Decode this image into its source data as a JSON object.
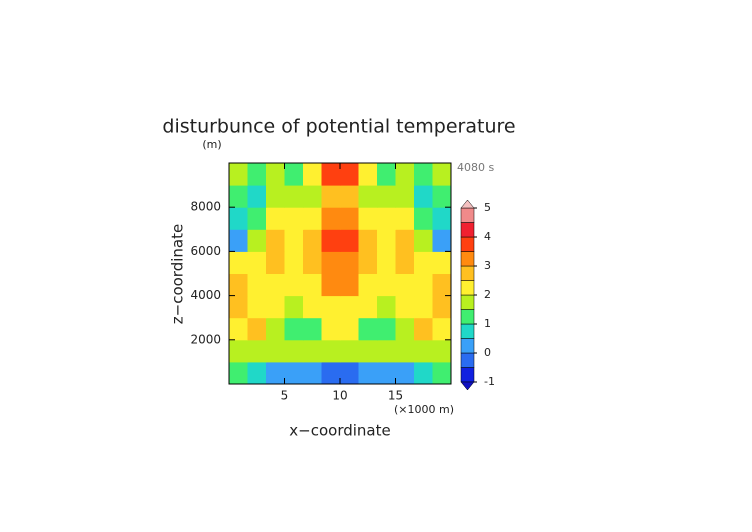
{
  "chart_data": {
    "type": "contour",
    "title": "disturbunce of potential temperature",
    "y_unit": "(m)",
    "time_label": "4080 s",
    "x_unit": "(×1000 m)",
    "x_label": "x−coordinate",
    "y_label": "z−coordinate",
    "xlim": [
      0,
      20
    ],
    "ylim": [
      0,
      10000
    ],
    "xticks": [
      5,
      10,
      15
    ],
    "yticks": [
      2000,
      4000,
      6000,
      8000
    ],
    "z": [
      [
        1.2,
        0.6,
        0.3,
        0.1,
        0.2,
        -0.2,
        -0.2,
        0.2,
        0.1,
        0.3,
        0.6,
        1.2
      ],
      [
        1.6,
        1.8,
        1.9,
        1.8,
        1.9,
        1.7,
        1.7,
        1.9,
        1.8,
        1.9,
        1.8,
        1.6
      ],
      [
        2.2,
        2.6,
        1.8,
        1.2,
        1.2,
        2.2,
        2.2,
        1.2,
        1.2,
        1.8,
        2.6,
        2.2
      ],
      [
        2.6,
        2.2,
        2.0,
        1.9,
        2.1,
        2.3,
        2.3,
        2.1,
        1.9,
        2.0,
        2.2,
        2.6
      ],
      [
        2.6,
        2.3,
        2.2,
        2.2,
        2.4,
        3.2,
        3.2,
        2.4,
        2.2,
        2.2,
        2.3,
        2.6
      ],
      [
        2.1,
        2.4,
        2.7,
        2.4,
        2.5,
        3.4,
        3.4,
        2.5,
        2.4,
        2.7,
        2.4,
        2.1
      ],
      [
        0.4,
        1.8,
        2.7,
        2.3,
        2.7,
        3.6,
        3.6,
        2.7,
        2.3,
        2.7,
        1.8,
        0.4
      ],
      [
        0.8,
        1.3,
        2.0,
        2.3,
        2.2,
        3.3,
        3.3,
        2.2,
        2.3,
        2.0,
        1.3,
        0.8
      ],
      [
        1.2,
        0.8,
        1.6,
        1.8,
        1.9,
        2.8,
        2.8,
        1.9,
        1.8,
        1.6,
        0.8,
        1.2
      ],
      [
        1.6,
        1.2,
        1.8,
        1.3,
        2.0,
        3.8,
        3.8,
        2.0,
        1.3,
        1.8,
        1.2,
        1.6
      ]
    ],
    "levels": [
      -1,
      -0.5,
      0,
      0.5,
      1,
      1.5,
      2,
      2.5,
      3,
      3.5,
      4,
      4.5,
      5
    ],
    "colors": [
      "#1020e0",
      "#2a6cf0",
      "#3aa0f8",
      "#20d8c8",
      "#40ee70",
      "#b8f020",
      "#fff030",
      "#ffc020",
      "#ff8a10",
      "#ff4010",
      "#f02030",
      "#f08a8a"
    ],
    "under_color": "#1010c0",
    "over_color": "#f4c0c0",
    "colorbar_ticks": [
      -1,
      0,
      1,
      2,
      3,
      4,
      5
    ]
  }
}
